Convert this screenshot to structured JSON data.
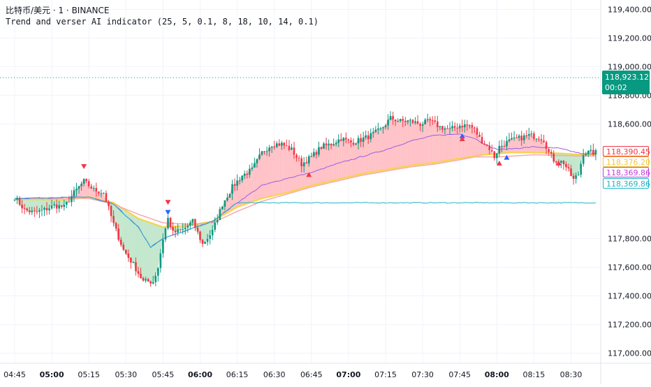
{
  "header": {
    "line1": "比特币/美元 · 1 · BINANCE",
    "line2": "Trend and verser AI indicator (25, 5, 0.1, 8, 18, 10, 14, 0.1)"
  },
  "chart_data": {
    "type": "candlestick",
    "x_ticks": [
      {
        "label": "04:45",
        "t": 0,
        "bold": false
      },
      {
        "label": "05:00",
        "t": 15,
        "bold": true
      },
      {
        "label": "05:15",
        "t": 30,
        "bold": false
      },
      {
        "label": "05:30",
        "t": 45,
        "bold": false
      },
      {
        "label": "05:45",
        "t": 60,
        "bold": false
      },
      {
        "label": "06:00",
        "t": 75,
        "bold": true
      },
      {
        "label": "06:15",
        "t": 90,
        "bold": false
      },
      {
        "label": "06:30",
        "t": 105,
        "bold": false
      },
      {
        "label": "06:45",
        "t": 120,
        "bold": false
      },
      {
        "label": "07:00",
        "t": 135,
        "bold": true
      },
      {
        "label": "07:15",
        "t": 150,
        "bold": false
      },
      {
        "label": "07:30",
        "t": 165,
        "bold": false
      },
      {
        "label": "07:45",
        "t": 180,
        "bold": false
      },
      {
        "label": "08:00",
        "t": 195,
        "bold": true
      },
      {
        "label": "08:15",
        "t": 210,
        "bold": false
      },
      {
        "label": "08:30",
        "t": 225,
        "bold": false
      }
    ],
    "y_ticks": [
      "119,400.00",
      "119,200.00",
      "119,000.00",
      "118,800.00",
      "118,600.00",
      "117,800.00",
      "117,600.00",
      "117,400.00",
      "117,200.00",
      "117,000.00"
    ],
    "y_tick_values": [
      119400,
      119200,
      119000,
      118800,
      118600,
      117800,
      117600,
      117400,
      117200,
      117000
    ],
    "ylim": [
      116930,
      119465
    ],
    "last_price": {
      "value": "118,923.12",
      "countdown": "00:02",
      "color": "#089981",
      "level": 118923.12
    },
    "line_labels": [
      {
        "value": "118,390.45",
        "color": "#f23645",
        "level": 118390.45
      },
      {
        "value": "118,376.20",
        "color": "#f0c93a",
        "level": 118376.2
      },
      {
        "value": "118,369.86",
        "color": "#c03fd6",
        "level": 118369.86
      },
      {
        "value": "118,369.86",
        "color": "#22b2c8",
        "level": 118369.86
      }
    ],
    "key_closes": [
      [
        0,
        118090
      ],
      [
        4,
        118000
      ],
      [
        8,
        117980
      ],
      [
        12,
        118000
      ],
      [
        16,
        118030
      ],
      [
        20,
        118020
      ],
      [
        24,
        118120
      ],
      [
        28,
        118200
      ],
      [
        32,
        118140
      ],
      [
        36,
        118120
      ],
      [
        40,
        117900
      ],
      [
        44,
        117720
      ],
      [
        48,
        117620
      ],
      [
        52,
        117500
      ],
      [
        56,
        117500
      ],
      [
        58,
        117600
      ],
      [
        60,
        117800
      ],
      [
        62,
        117940
      ],
      [
        64,
        117840
      ],
      [
        68,
        117860
      ],
      [
        72,
        117920
      ],
      [
        76,
        117760
      ],
      [
        80,
        117850
      ],
      [
        84,
        118040
      ],
      [
        88,
        118160
      ],
      [
        92,
        118240
      ],
      [
        96,
        118280
      ],
      [
        100,
        118400
      ],
      [
        104,
        118460
      ],
      [
        108,
        118460
      ],
      [
        112,
        118420
      ],
      [
        116,
        118320
      ],
      [
        120,
        118370
      ],
      [
        124,
        118440
      ],
      [
        128,
        118460
      ],
      [
        132,
        118500
      ],
      [
        136,
        118470
      ],
      [
        140,
        118490
      ],
      [
        144,
        118520
      ],
      [
        148,
        118560
      ],
      [
        152,
        118640
      ],
      [
        156,
        118620
      ],
      [
        160,
        118620
      ],
      [
        164,
        118600
      ],
      [
        168,
        118620
      ],
      [
        172,
        118580
      ],
      [
        176,
        118560
      ],
      [
        180,
        118590
      ],
      [
        184,
        118590
      ],
      [
        186,
        118560
      ],
      [
        188,
        118500
      ],
      [
        192,
        118430
      ],
      [
        194,
        118370
      ],
      [
        196,
        118440
      ],
      [
        200,
        118480
      ],
      [
        204,
        118500
      ],
      [
        208,
        118520
      ],
      [
        212,
        118510
      ],
      [
        214,
        118490
      ],
      [
        216,
        118400
      ],
      [
        218,
        118350
      ],
      [
        222,
        118330
      ],
      [
        226,
        118210
      ],
      [
        228,
        118250
      ],
      [
        230,
        118400
      ]
    ],
    "key_ma_slow": [
      [
        0,
        118080
      ],
      [
        30,
        118080
      ],
      [
        40,
        118040
      ],
      [
        50,
        117970
      ],
      [
        60,
        117910
      ],
      [
        70,
        117900
      ],
      [
        80,
        117910
      ],
      [
        90,
        117990
      ],
      [
        100,
        118060
      ],
      [
        110,
        118110
      ],
      [
        120,
        118160
      ],
      [
        130,
        118200
      ],
      [
        140,
        118240
      ],
      [
        150,
        118270
      ],
      [
        160,
        118300
      ],
      [
        170,
        118320
      ],
      [
        180,
        118350
      ],
      [
        186,
        118370
      ],
      [
        196,
        118370
      ],
      [
        210,
        118385
      ],
      [
        230,
        118376
      ]
    ],
    "key_ma_fast": [
      [
        0,
        118080
      ],
      [
        30,
        118090
      ],
      [
        40,
        118040
      ],
      [
        50,
        117880
      ],
      [
        55,
        117740
      ],
      [
        60,
        117800
      ],
      [
        70,
        117860
      ],
      [
        80,
        117920
      ],
      [
        90,
        118050
      ],
      [
        100,
        118170
      ],
      [
        110,
        118220
      ],
      [
        120,
        118260
      ],
      [
        130,
        118320
      ],
      [
        140,
        118370
      ],
      [
        150,
        118420
      ],
      [
        160,
        118480
      ],
      [
        170,
        118520
      ],
      [
        180,
        118530
      ],
      [
        186,
        118500
      ],
      [
        192,
        118440
      ],
      [
        196,
        118420
      ],
      [
        210,
        118440
      ],
      [
        220,
        118430
      ],
      [
        230,
        118390
      ]
    ],
    "key_trend_line": [
      [
        0,
        118075
      ],
      [
        20,
        118070
      ],
      [
        30,
        118090
      ],
      [
        40,
        118050
      ],
      [
        50,
        117940
      ],
      [
        60,
        117880
      ],
      [
        70,
        117890
      ],
      [
        80,
        117920
      ],
      [
        90,
        118020
      ],
      [
        100,
        118080
      ],
      [
        110,
        118120
      ],
      [
        120,
        118170
      ],
      [
        130,
        118210
      ],
      [
        140,
        118250
      ],
      [
        150,
        118280
      ],
      [
        160,
        118310
      ],
      [
        170,
        118330
      ],
      [
        180,
        118360
      ],
      [
        190,
        118385
      ],
      [
        200,
        118400
      ],
      [
        210,
        118400
      ],
      [
        220,
        118395
      ],
      [
        230,
        118385
      ]
    ],
    "markers": [
      {
        "t": 28,
        "type": "down",
        "color": "#f23645",
        "level": 118300
      },
      {
        "t": 62,
        "type": "down",
        "color": "#f23645",
        "level": 118050
      },
      {
        "t": 62,
        "type": "down",
        "color": "#2962ff",
        "level": 117980
      },
      {
        "t": 119,
        "type": "up",
        "color": "#f23645",
        "level": 118250
      },
      {
        "t": 181,
        "type": "up",
        "color": "#2962ff",
        "level": 118520
      },
      {
        "t": 181,
        "type": "up",
        "color": "#f23645",
        "level": 118500
      },
      {
        "t": 196,
        "type": "up",
        "color": "#f23645",
        "level": 118330
      },
      {
        "t": 199,
        "type": "up",
        "color": "#2962ff",
        "level": 118370
      },
      {
        "t": 220,
        "type": "up",
        "color": "#f23645",
        "level": 118330
      }
    ]
  }
}
